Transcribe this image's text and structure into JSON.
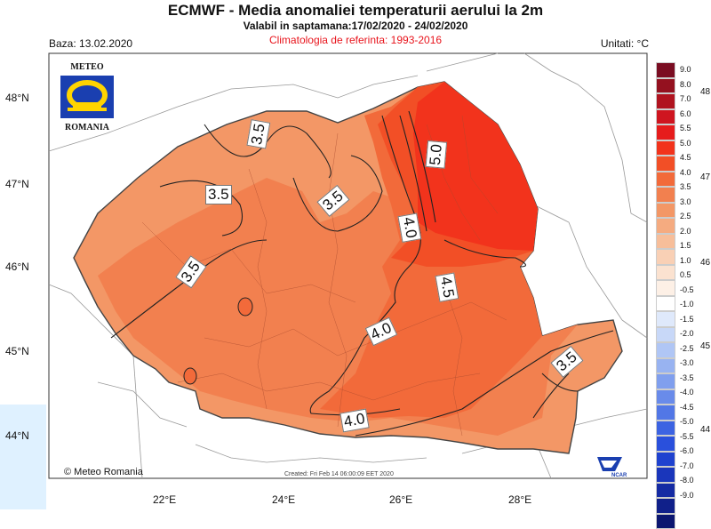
{
  "title": "ECMWF - Media anomaliei temperaturii aerului la 2m",
  "subtitle": "Valabil in saptamana:17/02/2020 - 24/02/2020",
  "climatology": "Climatologia de referinta: 1993-2016",
  "base_date": "Baza: 13.02.2020",
  "units": "Unitati: °C",
  "logo": {
    "top": "METEO",
    "bottom": "ROMANIA"
  },
  "copyright": "© Meteo Romania",
  "created": "Created: Fri Feb 14 06:00:09 EET 2020",
  "ncar": "NCAR",
  "lat_labels": [
    "48°N",
    "47°N",
    "46°N",
    "45°N",
    "44°N"
  ],
  "lon_labels": [
    "22°E",
    "24°E",
    "26°E",
    "28°E"
  ],
  "right_clipped_labels": [
    "48",
    "47",
    "46",
    "45",
    "44"
  ],
  "contour_labels": [
    "3.5",
    "3.5",
    "3.5",
    "3.5",
    "4.0",
    "5.0",
    "4.5",
    "4.0",
    "4.0",
    "3.5"
  ],
  "legend": [
    {
      "label": "9.0",
      "color": "#7a0d22"
    },
    {
      "label": "8.0",
      "color": "#94111f"
    },
    {
      "label": "7.0",
      "color": "#b0131f"
    },
    {
      "label": "6.0",
      "color": "#cf1520"
    },
    {
      "label": "5.5",
      "color": "#e61c1c"
    },
    {
      "label": "5.0",
      "color": "#f2331c"
    },
    {
      "label": "4.5",
      "color": "#f24f26"
    },
    {
      "label": "4.0",
      "color": "#f26a3a"
    },
    {
      "label": "3.5",
      "color": "#f2804f"
    },
    {
      "label": "3.0",
      "color": "#f39766"
    },
    {
      "label": "2.5",
      "color": "#f5ab80"
    },
    {
      "label": "2.0",
      "color": "#f7be9a"
    },
    {
      "label": "1.5",
      "color": "#f9d0b5"
    },
    {
      "label": "1.0",
      "color": "#fbe2d0"
    },
    {
      "label": "0.5",
      "color": "#fdf0e6"
    },
    {
      "label": "-0.5",
      "color": "#ffffff"
    },
    {
      "label": "-1.0",
      "color": "#dfe9fb"
    },
    {
      "label": "-1.5",
      "color": "#c8d8f8"
    },
    {
      "label": "-2.0",
      "color": "#b0c6f5"
    },
    {
      "label": "-2.5",
      "color": "#98b3f1"
    },
    {
      "label": "-3.0",
      "color": "#809fee"
    },
    {
      "label": "-3.5",
      "color": "#698bea"
    },
    {
      "label": "-4.0",
      "color": "#5277e6"
    },
    {
      "label": "-4.5",
      "color": "#3c63e2"
    },
    {
      "label": "-5.0",
      "color": "#2a50dc"
    },
    {
      "label": "-5.5",
      "color": "#1f42cf"
    },
    {
      "label": "-6.0",
      "color": "#1a36bb"
    },
    {
      "label": "-7.0",
      "color": "#152ba3"
    },
    {
      "label": "-8.0",
      "color": "#10208a"
    },
    {
      "label": "-9.0",
      "color": "#0b1670"
    }
  ]
}
